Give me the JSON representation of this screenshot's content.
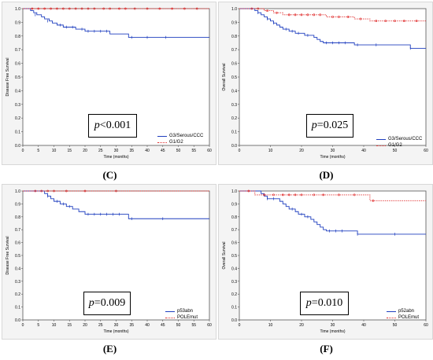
{
  "colors": {
    "blue": "#1f3fbf",
    "red": "#e03030",
    "panel_bg": "#f4f4f4"
  },
  "panels": [
    {
      "id": "C",
      "caption": "(C)",
      "pvalue": {
        "italic": "p",
        "rest": "<0.001"
      }
    },
    {
      "id": "D",
      "caption": "(D)",
      "pvalue": {
        "italic": "p",
        "rest": "=0.025"
      }
    },
    {
      "id": "E",
      "caption": "(E)",
      "pvalue": {
        "italic": "p",
        "rest": "=0.009"
      }
    },
    {
      "id": "F",
      "caption": "(F)",
      "pvalue": {
        "italic": "p",
        "rest": "=0.010"
      }
    }
  ],
  "chart_data": [
    {
      "type": "line",
      "ylabel": "Disease Free Survival",
      "xlabel": "Time (months)",
      "xlim": [
        0,
        60
      ],
      "ylim": [
        0,
        1.0
      ],
      "xticks": [
        0,
        5,
        10,
        15,
        20,
        25,
        30,
        35,
        40,
        45,
        50,
        55,
        60
      ],
      "yticks": [
        0.0,
        0.1,
        0.2,
        0.3,
        0.4,
        0.5,
        0.6,
        0.7,
        0.8,
        0.9,
        1.0
      ],
      "series": [
        {
          "name": "G3/Serous/CCC",
          "color": "blue",
          "style": "solid",
          "steps": [
            [
              0,
              1.0
            ],
            [
              2.5,
              0.985
            ],
            [
              3.5,
              0.97
            ],
            [
              4.5,
              0.955
            ],
            [
              6,
              0.94
            ],
            [
              7,
              0.925
            ],
            [
              8.5,
              0.91
            ],
            [
              9.5,
              0.895
            ],
            [
              11,
              0.88
            ],
            [
              13,
              0.865
            ],
            [
              17,
              0.85
            ],
            [
              20,
              0.835
            ],
            [
              28,
              0.815
            ],
            [
              34,
              0.79
            ],
            [
              60,
              0.79
            ]
          ],
          "censors": [
            [
              4,
              0.955
            ],
            [
              8,
              0.91
            ],
            [
              12,
              0.88
            ],
            [
              14,
              0.865
            ],
            [
              16,
              0.865
            ],
            [
              19,
              0.85
            ],
            [
              21,
              0.835
            ],
            [
              23,
              0.835
            ],
            [
              25,
              0.835
            ],
            [
              27,
              0.835
            ],
            [
              35,
              0.79
            ],
            [
              40,
              0.79
            ],
            [
              46,
              0.79
            ]
          ]
        },
        {
          "name": "G1/G2",
          "color": "red",
          "style": "dotted",
          "steps": [
            [
              0,
              1.0
            ],
            [
              60,
              1.0
            ]
          ],
          "censors": [
            [
              3,
              1.0
            ],
            [
              5,
              1.0
            ],
            [
              7,
              1.0
            ],
            [
              9,
              1.0
            ],
            [
              11,
              1.0
            ],
            [
              13,
              1.0
            ],
            [
              15,
              1.0
            ],
            [
              17,
              1.0
            ],
            [
              19,
              1.0
            ],
            [
              21,
              1.0
            ],
            [
              23,
              1.0
            ],
            [
              26,
              1.0
            ],
            [
              28,
              1.0
            ],
            [
              31,
              1.0
            ],
            [
              33,
              1.0
            ],
            [
              36,
              1.0
            ],
            [
              40,
              1.0
            ],
            [
              44,
              1.0
            ],
            [
              48,
              1.0
            ],
            [
              52,
              1.0
            ],
            [
              56,
              1.0
            ]
          ]
        }
      ]
    },
    {
      "type": "line",
      "ylabel": "Overall Survival",
      "xlabel": "Time (months)",
      "xlim": [
        0,
        60
      ],
      "ylim": [
        0,
        1.0
      ],
      "xticks": [
        0,
        10,
        20,
        30,
        40,
        50,
        60
      ],
      "yticks": [
        0.0,
        0.1,
        0.2,
        0.3,
        0.4,
        0.5,
        0.6,
        0.7,
        0.8,
        0.9,
        1.0
      ],
      "series": [
        {
          "name": "G3/Serous/CCC",
          "color": "blue",
          "style": "solid",
          "steps": [
            [
              0,
              1.0
            ],
            [
              5,
              0.985
            ],
            [
              6,
              0.97
            ],
            [
              7,
              0.955
            ],
            [
              8,
              0.94
            ],
            [
              9,
              0.925
            ],
            [
              10,
              0.91
            ],
            [
              11,
              0.895
            ],
            [
              12,
              0.88
            ],
            [
              13,
              0.865
            ],
            [
              14,
              0.85
            ],
            [
              16,
              0.835
            ],
            [
              18,
              0.82
            ],
            [
              21,
              0.805
            ],
            [
              24,
              0.79
            ],
            [
              25,
              0.775
            ],
            [
              26,
              0.76
            ],
            [
              27,
              0.75
            ],
            [
              37,
              0.735
            ],
            [
              55,
              0.71
            ],
            [
              60,
              0.71
            ]
          ],
          "censors": [
            [
              6,
              0.97
            ],
            [
              9,
              0.925
            ],
            [
              11,
              0.895
            ],
            [
              15,
              0.85
            ],
            [
              17,
              0.835
            ],
            [
              19,
              0.82
            ],
            [
              22,
              0.805
            ],
            [
              28,
              0.75
            ],
            [
              30,
              0.75
            ],
            [
              32,
              0.75
            ],
            [
              34,
              0.75
            ],
            [
              38,
              0.735
            ],
            [
              44,
              0.735
            ],
            [
              55,
              0.71
            ]
          ]
        },
        {
          "name": "G1/G2",
          "color": "red",
          "style": "dotted",
          "steps": [
            [
              0,
              1.0
            ],
            [
              8,
              0.985
            ],
            [
              11,
              0.97
            ],
            [
              14,
              0.955
            ],
            [
              28,
              0.94
            ],
            [
              37,
              0.925
            ],
            [
              42,
              0.91
            ],
            [
              60,
              0.91
            ]
          ],
          "censors": [
            [
              4,
              1.0
            ],
            [
              6,
              1.0
            ],
            [
              9,
              0.985
            ],
            [
              12,
              0.97
            ],
            [
              16,
              0.955
            ],
            [
              18,
              0.955
            ],
            [
              20,
              0.955
            ],
            [
              22,
              0.955
            ],
            [
              24,
              0.955
            ],
            [
              26,
              0.955
            ],
            [
              30,
              0.94
            ],
            [
              32,
              0.94
            ],
            [
              35,
              0.94
            ],
            [
              39,
              0.925
            ],
            [
              44,
              0.91
            ],
            [
              47,
              0.91
            ],
            [
              50,
              0.91
            ],
            [
              53,
              0.91
            ],
            [
              57,
              0.91
            ]
          ]
        }
      ]
    },
    {
      "type": "line",
      "ylabel": "Disease Free Survival",
      "xlabel": "Time (months)",
      "xlim": [
        0,
        60
      ],
      "ylim": [
        0,
        1.0
      ],
      "xticks": [
        0,
        5,
        10,
        15,
        20,
        25,
        30,
        35,
        40,
        45,
        50,
        55,
        60
      ],
      "yticks": [
        0.0,
        0.1,
        0.2,
        0.3,
        0.4,
        0.5,
        0.6,
        0.7,
        0.8,
        0.9,
        1.0
      ],
      "series": [
        {
          "name": "p53abn",
          "color": "blue",
          "style": "solid",
          "steps": [
            [
              0,
              1.0
            ],
            [
              7,
              0.98
            ],
            [
              8,
              0.96
            ],
            [
              9,
              0.94
            ],
            [
              10,
              0.92
            ],
            [
              12,
              0.9
            ],
            [
              14,
              0.88
            ],
            [
              16,
              0.86
            ],
            [
              18,
              0.84
            ],
            [
              20,
              0.82
            ],
            [
              34,
              0.785
            ],
            [
              60,
              0.785
            ]
          ],
          "censors": [
            [
              8,
              0.96
            ],
            [
              11,
              0.92
            ],
            [
              13,
              0.9
            ],
            [
              15,
              0.88
            ],
            [
              21,
              0.82
            ],
            [
              23,
              0.82
            ],
            [
              25,
              0.82
            ],
            [
              27,
              0.82
            ],
            [
              29,
              0.82
            ],
            [
              31,
              0.82
            ],
            [
              35,
              0.785
            ],
            [
              45,
              0.785
            ]
          ]
        },
        {
          "name": "POLEmut",
          "color": "red",
          "style": "dotted",
          "steps": [
            [
              0,
              1.0
            ],
            [
              60,
              1.0
            ]
          ],
          "censors": [
            [
              4,
              1.0
            ],
            [
              6,
              1.0
            ],
            [
              8,
              1.0
            ],
            [
              10,
              1.0
            ],
            [
              14,
              1.0
            ],
            [
              20,
              1.0
            ],
            [
              30,
              1.0
            ]
          ]
        }
      ]
    },
    {
      "type": "line",
      "ylabel": "Overall Survival",
      "xlabel": "Time (months)",
      "xlim": [
        0,
        60
      ],
      "ylim": [
        0,
        1.0
      ],
      "xticks": [
        0,
        10,
        20,
        30,
        40,
        50,
        60
      ],
      "yticks": [
        0.0,
        0.1,
        0.2,
        0.3,
        0.4,
        0.5,
        0.6,
        0.7,
        0.8,
        0.9,
        1.0
      ],
      "series": [
        {
          "name": "p52abn",
          "color": "blue",
          "style": "solid",
          "steps": [
            [
              0,
              1.0
            ],
            [
              7,
              0.98
            ],
            [
              8,
              0.96
            ],
            [
              9,
              0.94
            ],
            [
              13,
              0.92
            ],
            [
              14,
              0.9
            ],
            [
              15,
              0.88
            ],
            [
              16,
              0.86
            ],
            [
              18,
              0.84
            ],
            [
              19,
              0.82
            ],
            [
              21,
              0.8
            ],
            [
              23,
              0.78
            ],
            [
              24,
              0.76
            ],
            [
              25,
              0.74
            ],
            [
              26,
              0.72
            ],
            [
              27,
              0.7
            ],
            [
              28,
              0.69
            ],
            [
              38,
              0.665
            ],
            [
              60,
              0.665
            ]
          ],
          "censors": [
            [
              9,
              0.94
            ],
            [
              11,
              0.94
            ],
            [
              17,
              0.86
            ],
            [
              20,
              0.82
            ],
            [
              22,
              0.8
            ],
            [
              29,
              0.69
            ],
            [
              31,
              0.69
            ],
            [
              33,
              0.69
            ],
            [
              38,
              0.665
            ],
            [
              50,
              0.665
            ]
          ]
        },
        {
          "name": "POLEmut",
          "color": "red",
          "style": "dotted",
          "steps": [
            [
              0,
              1.0
            ],
            [
              5,
              0.97
            ],
            [
              42,
              0.925
            ],
            [
              60,
              0.925
            ]
          ],
          "censors": [
            [
              3,
              1.0
            ],
            [
              8,
              0.97
            ],
            [
              11,
              0.97
            ],
            [
              14,
              0.97
            ],
            [
              16,
              0.97
            ],
            [
              18,
              0.97
            ],
            [
              20,
              0.97
            ],
            [
              24,
              0.97
            ],
            [
              27,
              0.97
            ],
            [
              32,
              0.97
            ],
            [
              37,
              0.97
            ],
            [
              43,
              0.925
            ]
          ]
        }
      ]
    }
  ]
}
